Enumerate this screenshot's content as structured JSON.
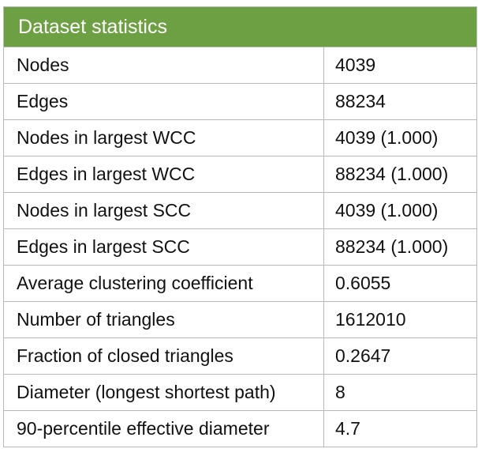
{
  "table": {
    "title": "Dataset statistics",
    "rows": [
      {
        "label": "Nodes",
        "value": "4039"
      },
      {
        "label": "Edges",
        "value": "88234"
      },
      {
        "label": "Nodes in largest WCC",
        "value": "4039 (1.000)"
      },
      {
        "label": "Edges in largest WCC",
        "value": "88234 (1.000)"
      },
      {
        "label": "Nodes in largest SCC",
        "value": "4039 (1.000)"
      },
      {
        "label": "Edges in largest SCC",
        "value": "88234 (1.000)"
      },
      {
        "label": "Average clustering coefficient",
        "value": "0.6055"
      },
      {
        "label": "Number of triangles",
        "value": "1612010"
      },
      {
        "label": "Fraction of closed triangles",
        "value": "0.2647"
      },
      {
        "label": "Diameter (longest shortest path)",
        "value": "8"
      },
      {
        "label": "90-percentile effective diameter",
        "value": "4.7"
      }
    ]
  },
  "colors": {
    "header_background": "#6da043",
    "header_text": "#ffffff",
    "border": "#b9b9b9"
  }
}
